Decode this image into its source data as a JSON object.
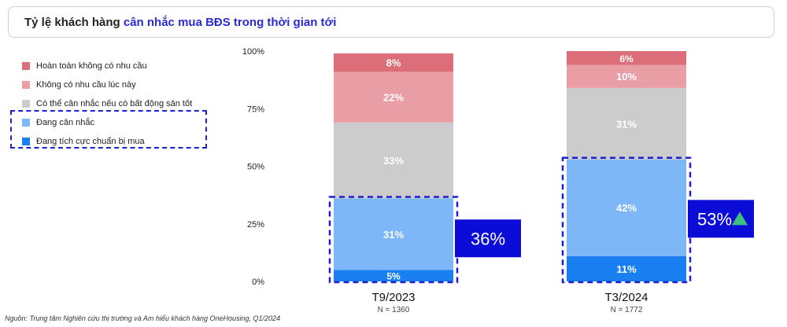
{
  "title": {
    "prefix": "Tỷ lệ khách hàng ",
    "highlight": "cân nhắc mua BĐS trong thời gian tới"
  },
  "source": "Nguồn: Trung tâm Nghiên cứu thị trường và Am hiểu khách hàng OneHousing, Q1/2024",
  "chart_data": {
    "type": "bar",
    "stacked": true,
    "categories": [
      "T9/2023",
      "T3/2024"
    ],
    "sample_sizes": [
      "N = 1360",
      "N = 1772"
    ],
    "ylim": [
      0,
      100
    ],
    "yticks": [
      "0%",
      "25%",
      "50%",
      "75%",
      "100%"
    ],
    "series": [
      {
        "name": "Đang tích cực chuẩn bị mua",
        "color": "#1a7ff0",
        "values": [
          5,
          11
        ],
        "labels": [
          "5%",
          "11%"
        ]
      },
      {
        "name": "Đang cân nhắc",
        "color": "#7db7f8",
        "values": [
          31,
          42
        ],
        "labels": [
          "31%",
          "42%"
        ]
      },
      {
        "name": "Có thể cân nhắc nếu có bất động sản tốt",
        "color": "#cccccc",
        "values": [
          33,
          31
        ],
        "labels": [
          "33%",
          "31%"
        ]
      },
      {
        "name": "Không có nhu cầu lúc này",
        "color": "#e99ea5",
        "values": [
          22,
          10
        ],
        "labels": [
          "22%",
          "10%"
        ]
      },
      {
        "name": "Hoàn toàn không có nhu cầu",
        "color": "#db6e78",
        "values": [
          8,
          6
        ],
        "labels": [
          "8%",
          "6%"
        ]
      }
    ],
    "callouts": [
      {
        "text": "36%",
        "trend": ""
      },
      {
        "text": "53%",
        "trend": "up"
      }
    ],
    "callout_color": "#0c0cd9",
    "trend_color": "#3fbf7f",
    "grid": false,
    "legend_position": "left"
  }
}
